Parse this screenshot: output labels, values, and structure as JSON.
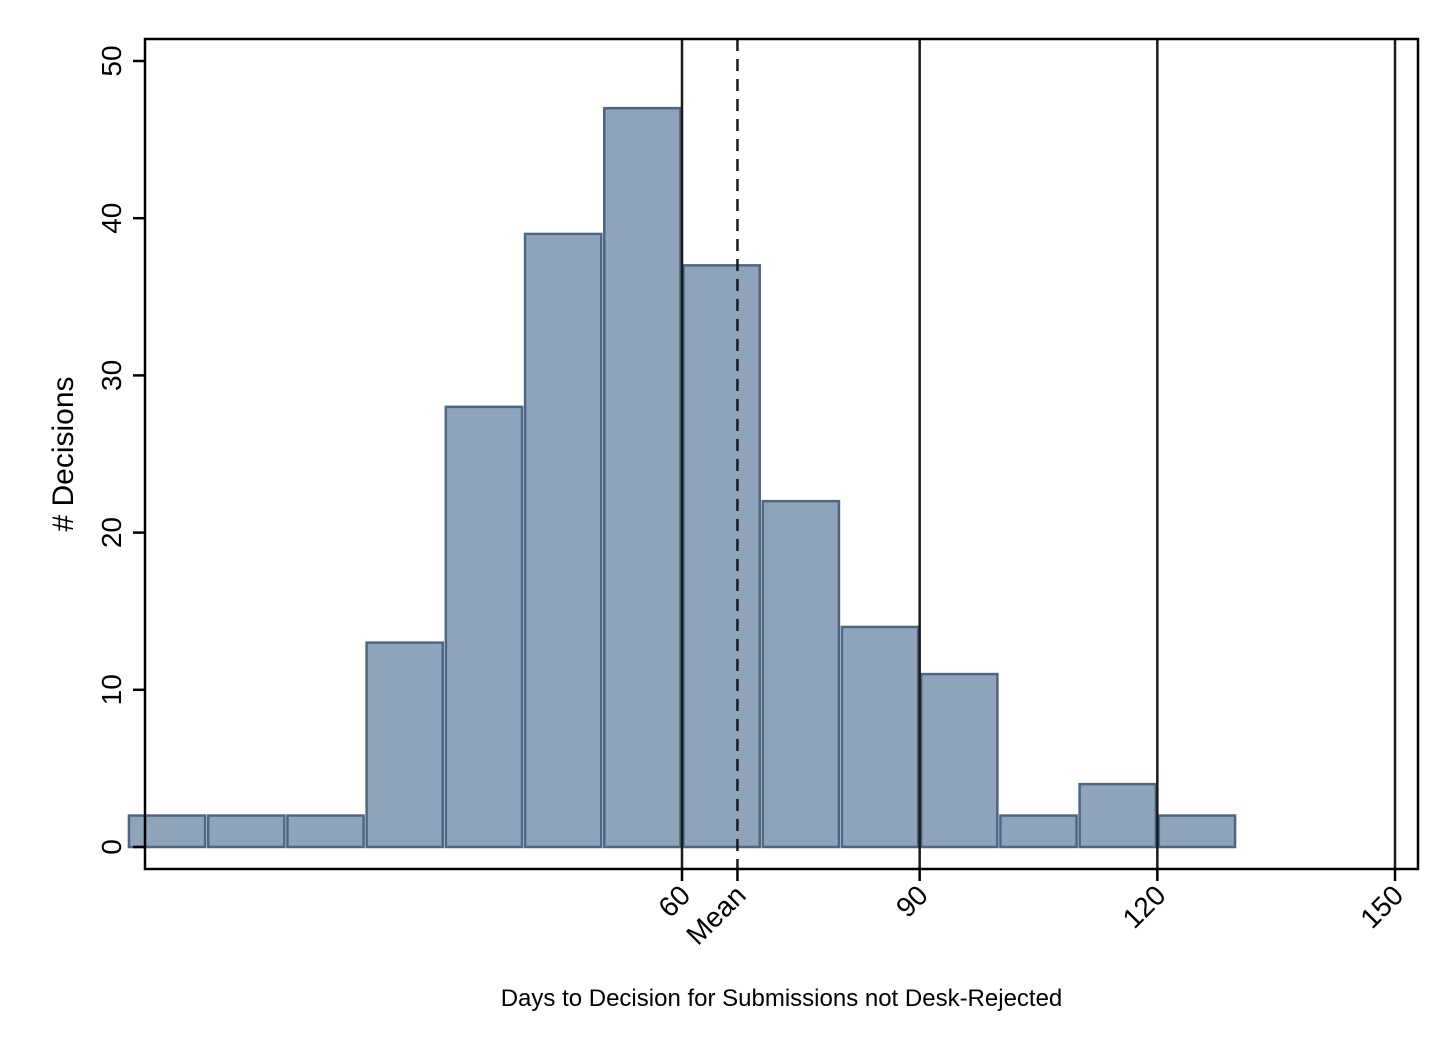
{
  "chart_data": {
    "type": "bar",
    "subtype": "histogram",
    "xlabel": "Days to Decision for Submissions not Desk-Rejected",
    "ylabel": "# Decisions",
    "xlim": [
      -12,
      152
    ],
    "ylim": [
      0,
      52
    ],
    "bin_width": 10,
    "bins": [
      {
        "start": -10,
        "end": 0,
        "value": 2
      },
      {
        "start": 0,
        "end": 10,
        "value": 2
      },
      {
        "start": 10,
        "end": 20,
        "value": 2
      },
      {
        "start": 20,
        "end": 30,
        "value": 13
      },
      {
        "start": 30,
        "end": 40,
        "value": 28
      },
      {
        "start": 40,
        "end": 50,
        "value": 39
      },
      {
        "start": 50,
        "end": 60,
        "value": 47
      },
      {
        "start": 60,
        "end": 70,
        "value": 37
      },
      {
        "start": 70,
        "end": 80,
        "value": 22
      },
      {
        "start": 80,
        "end": 90,
        "value": 14
      },
      {
        "start": 90,
        "end": 100,
        "value": 11
      },
      {
        "start": 100,
        "end": 110,
        "value": 2
      },
      {
        "start": 110,
        "end": 120,
        "value": 4
      },
      {
        "start": 120,
        "end": 130,
        "value": 2
      }
    ],
    "y_ticks": [
      0,
      10,
      20,
      30,
      40,
      50
    ],
    "x_ticks": [
      {
        "value": 60,
        "label": "60"
      },
      {
        "value": 67,
        "label": "Mean"
      },
      {
        "value": 90,
        "label": "90"
      },
      {
        "value": 120,
        "label": "120"
      },
      {
        "value": 150,
        "label": "150"
      }
    ],
    "reference_lines": [
      {
        "value": 60,
        "style": "solid"
      },
      {
        "value": 90,
        "style": "solid"
      },
      {
        "value": 120,
        "style": "solid"
      },
      {
        "value": 150,
        "style": "solid"
      },
      {
        "value": 67,
        "style": "dashed",
        "label": "Mean"
      }
    ],
    "colors": {
      "bar_fill": "#8fa4ba",
      "bar_stroke": "#4c6683",
      "line": "#1a1a1a",
      "axis": "#000000"
    },
    "grid": false,
    "legend": "none"
  }
}
